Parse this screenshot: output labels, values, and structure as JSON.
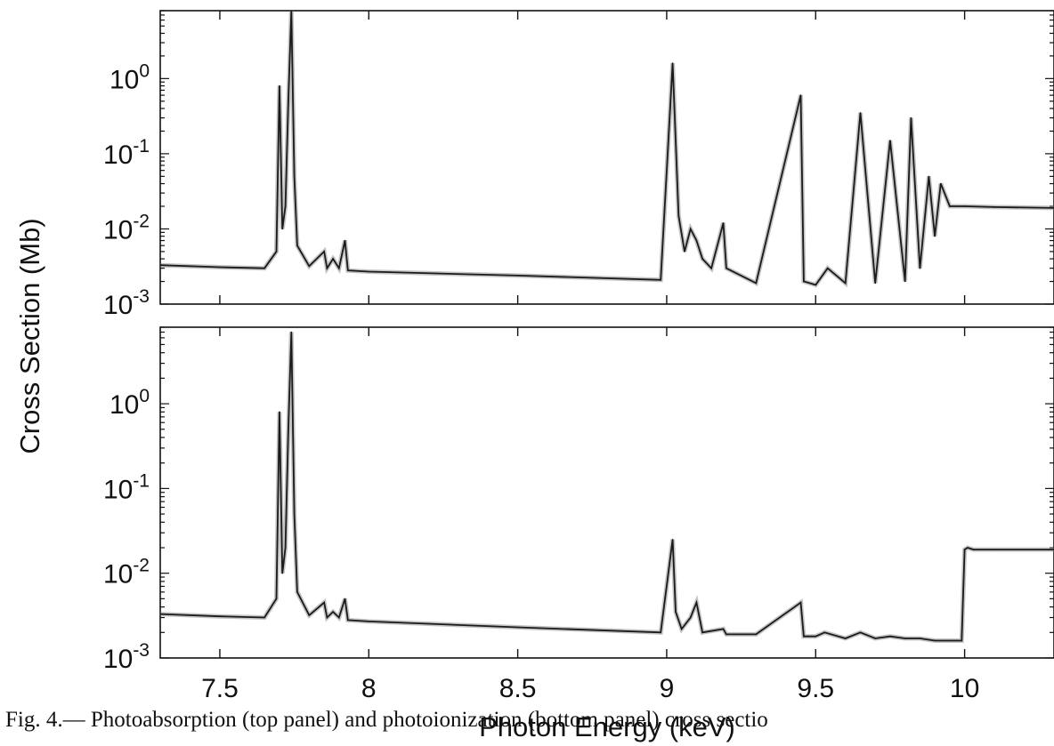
{
  "chart_data": [
    {
      "type": "line",
      "panel": "top",
      "description_title": "",
      "ylabel": "Cross Section (Mb)",
      "xlabel": "Photon Energy (keV)",
      "xlim": [
        7.3,
        10.3
      ],
      "ylim": [
        0.001,
        8
      ],
      "yscale": "log",
      "x_ticks": [
        7.5,
        8,
        8.5,
        9,
        9.5,
        10
      ],
      "y_tick_labels": [
        {
          "base": "10",
          "exp": "0",
          "value": 1
        },
        {
          "base": "10",
          "exp": "-1",
          "value": 0.1
        },
        {
          "base": "10",
          "exp": "-2",
          "value": 0.01
        },
        {
          "base": "10",
          "exp": "-3",
          "value": 0.001
        }
      ],
      "series": [
        {
          "x": [
            7.3,
            7.5,
            7.65,
            7.69,
            7.7,
            7.71,
            7.72,
            7.73,
            7.74,
            7.75,
            7.76,
            7.8,
            7.85,
            7.86,
            7.88,
            7.9,
            7.92,
            7.93,
            8.0,
            8.5,
            8.98,
            9.02,
            9.04,
            9.06,
            9.08,
            9.1,
            9.12,
            9.15,
            9.19,
            9.2,
            9.3,
            9.45,
            9.46,
            9.5,
            9.54,
            9.6,
            9.65,
            9.7,
            9.75,
            9.8,
            9.82,
            9.85,
            9.88,
            9.9,
            9.92,
            9.95,
            10.0,
            10.1,
            10.3
          ],
          "y": [
            0.0033,
            0.0031,
            0.003,
            0.005,
            0.8,
            0.01,
            0.02,
            0.5,
            8.0,
            0.05,
            0.006,
            0.0032,
            0.005,
            0.003,
            0.004,
            0.003,
            0.007,
            0.0028,
            0.0027,
            0.0024,
            0.0021,
            1.6,
            0.015,
            0.005,
            0.01,
            0.007,
            0.004,
            0.003,
            0.012,
            0.003,
            0.0019,
            0.6,
            0.002,
            0.0018,
            0.003,
            0.0019,
            0.35,
            0.0019,
            0.15,
            0.002,
            0.3,
            0.003,
            0.05,
            0.008,
            0.04,
            0.02,
            0.02,
            0.0195,
            0.019
          ]
        }
      ]
    },
    {
      "type": "line",
      "panel": "bottom",
      "ylabel": "Cross Section (Mb)",
      "xlabel": "Photon Energy (keV)",
      "xlim": [
        7.3,
        10.3
      ],
      "ylim": [
        0.001,
        8
      ],
      "yscale": "log",
      "x_ticks": [
        7.5,
        8,
        8.5,
        9,
        9.5,
        10
      ],
      "y_tick_labels": [
        {
          "base": "10",
          "exp": "0",
          "value": 1
        },
        {
          "base": "10",
          "exp": "-1",
          "value": 0.1
        },
        {
          "base": "10",
          "exp": "-2",
          "value": 0.01
        },
        {
          "base": "10",
          "exp": "-3",
          "value": 0.001
        }
      ],
      "series": [
        {
          "x": [
            7.3,
            7.5,
            7.65,
            7.69,
            7.7,
            7.71,
            7.72,
            7.73,
            7.74,
            7.75,
            7.76,
            7.8,
            7.85,
            7.86,
            7.88,
            7.9,
            7.92,
            7.93,
            8.0,
            8.5,
            8.98,
            9.02,
            9.03,
            9.05,
            9.08,
            9.1,
            9.12,
            9.19,
            9.2,
            9.3,
            9.45,
            9.46,
            9.5,
            9.53,
            9.6,
            9.65,
            9.7,
            9.75,
            9.8,
            9.85,
            9.9,
            9.95,
            9.99,
            10.0,
            10.01,
            10.03,
            10.1,
            10.3
          ],
          "y": [
            0.0033,
            0.0031,
            0.003,
            0.005,
            0.8,
            0.01,
            0.02,
            0.5,
            7.0,
            0.05,
            0.006,
            0.0032,
            0.0045,
            0.003,
            0.0035,
            0.003,
            0.005,
            0.0028,
            0.0027,
            0.0023,
            0.002,
            0.025,
            0.0035,
            0.0022,
            0.003,
            0.0045,
            0.002,
            0.0022,
            0.0019,
            0.0019,
            0.0045,
            0.0018,
            0.0018,
            0.002,
            0.0017,
            0.002,
            0.0017,
            0.0018,
            0.0017,
            0.0017,
            0.0016,
            0.0016,
            0.0016,
            0.019,
            0.02,
            0.019,
            0.019,
            0.019
          ]
        }
      ]
    }
  ],
  "caption": "Fig. 4.— Photoabsorption (top panel) and photoionization (bottom panel) cross sectio",
  "colors": {
    "line": "#1a1a1a",
    "fill": "#7a7a7a",
    "axis": "#111111"
  }
}
